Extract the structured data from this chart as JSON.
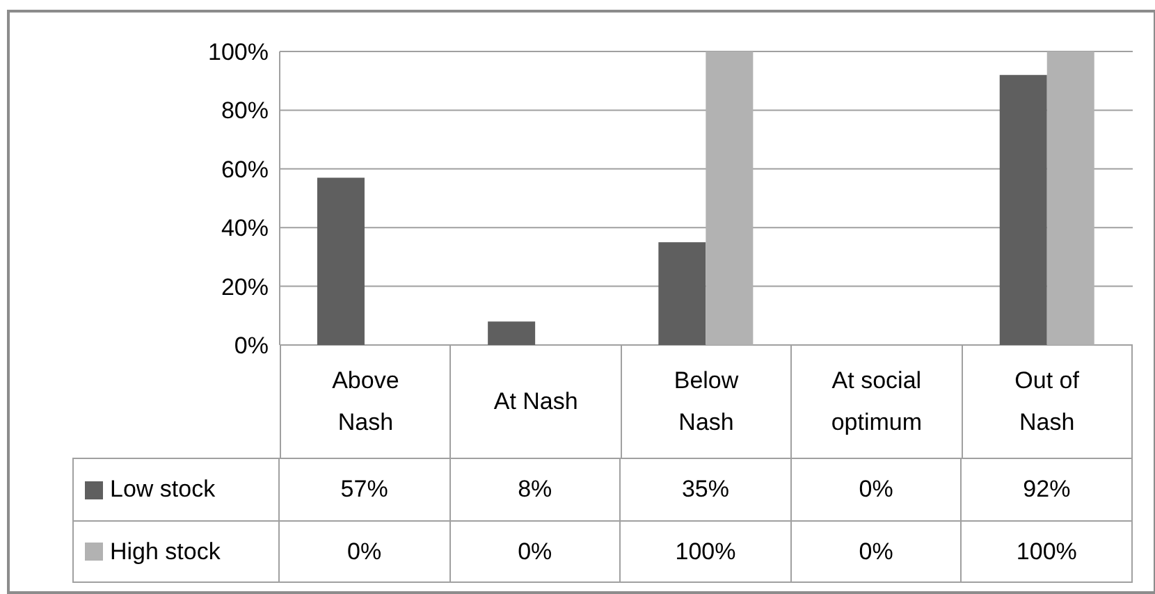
{
  "chart_data": {
    "type": "bar",
    "categories": [
      "Above Nash",
      "At Nash",
      "Below Nash",
      "At social optimum",
      "Out of Nash"
    ],
    "series": [
      {
        "name": "Low stock",
        "color": "#5f5f5f",
        "values": [
          57,
          8,
          35,
          0,
          92
        ],
        "value_labels": [
          "57%",
          "8%",
          "35%",
          "0%",
          "92%"
        ]
      },
      {
        "name": "High stock",
        "color": "#b2b2b2",
        "values": [
          0,
          0,
          100,
          0,
          100
        ],
        "value_labels": [
          "0%",
          "0%",
          "100%",
          "0%",
          "100%"
        ]
      }
    ],
    "ylim": [
      0,
      100
    ],
    "yticks": [
      {
        "value": 0,
        "label": "0%"
      },
      {
        "value": 20,
        "label": "20%"
      },
      {
        "value": 40,
        "label": "40%"
      },
      {
        "value": 60,
        "label": "60%"
      },
      {
        "value": 80,
        "label": "80%"
      },
      {
        "value": 100,
        "label": "100%"
      }
    ],
    "grid": "y",
    "legend": "bottom"
  }
}
